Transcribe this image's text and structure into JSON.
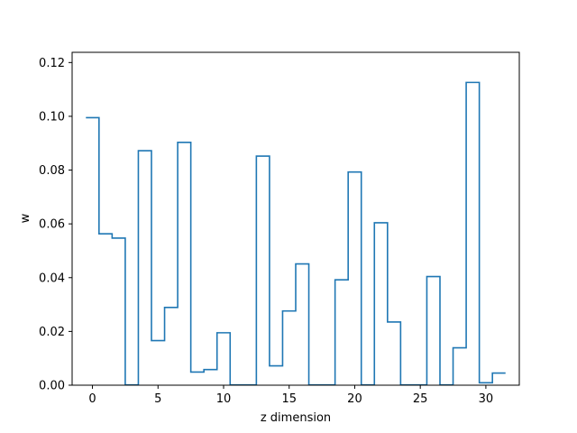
{
  "chart_data": {
    "type": "line",
    "drawstyle": "steps-mid",
    "title": "",
    "xlabel": "z dimension",
    "ylabel": "w",
    "xlim": [
      -1.55,
      32.55
    ],
    "ylim": [
      0,
      0.1238
    ],
    "xticks": [
      0,
      5,
      10,
      15,
      20,
      25,
      30
    ],
    "yticks": [
      0.0,
      0.02,
      0.04,
      0.06,
      0.08,
      0.1,
      0.12
    ],
    "ytick_labels": [
      "0.00",
      "0.02",
      "0.04",
      "0.06",
      "0.08",
      "0.10",
      "0.12"
    ],
    "grid": false,
    "line_color": "#1f77b4",
    "series": [
      {
        "x": [
          0,
          1,
          2,
          3,
          4,
          5,
          6,
          7,
          8,
          9,
          10,
          11,
          12,
          13,
          14,
          15,
          16,
          17,
          18,
          19,
          20,
          21,
          22,
          23,
          24,
          25,
          26,
          27,
          28,
          29,
          30,
          31
        ],
        "values": [
          0.0995,
          0.0563,
          0.0547,
          0.0001,
          0.0872,
          0.0166,
          0.0289,
          0.0903,
          0.0049,
          0.0058,
          0.0195,
          0.0001,
          0.0001,
          0.0852,
          0.0072,
          0.0276,
          0.0451,
          0.0001,
          0.0001,
          0.0392,
          0.0793,
          0.0001,
          0.0604,
          0.0235,
          0.0001,
          0.0001,
          0.0404,
          0.0001,
          0.0139,
          0.1126,
          0.0009,
          0.0045
        ]
      }
    ]
  }
}
